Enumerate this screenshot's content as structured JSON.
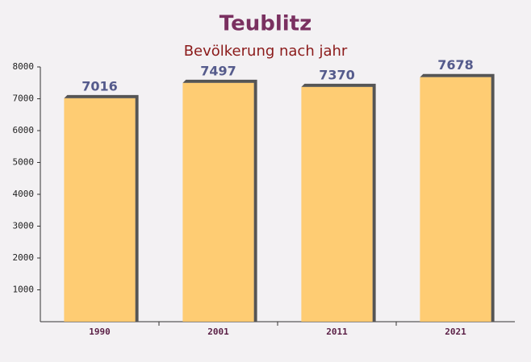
{
  "chart_data": {
    "type": "bar",
    "title": "Teublitz",
    "subtitle": "Bevölkerung nach jahr",
    "categories": [
      "1990",
      "2001",
      "2011",
      "2021"
    ],
    "values": [
      7016,
      7497,
      7370,
      7678
    ],
    "color": "#ffc55c",
    "ylim": [
      0,
      8000
    ],
    "yticks": [
      1000,
      2000,
      3000,
      4000,
      5000,
      6000,
      7000,
      8000
    ]
  }
}
